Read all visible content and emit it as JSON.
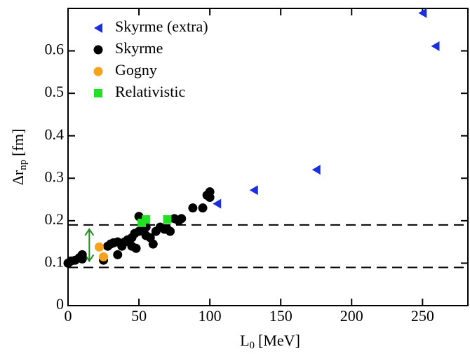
{
  "chart_data": {
    "type": "scatter",
    "xlabel": {
      "main": "L",
      "sub": "0",
      "unit": "[MeV]"
    },
    "ylabel": {
      "main": "Δr",
      "sub": "np",
      "unit": "[fm]"
    },
    "xlim": [
      0,
      282
    ],
    "ylim": [
      0,
      0.7
    ],
    "xticks": [
      0,
      50,
      100,
      150,
      200,
      250
    ],
    "yticks": [
      0,
      0.1,
      0.2,
      0.3,
      0.4,
      0.5,
      0.6
    ],
    "hlines": [
      0.09,
      0.19
    ],
    "arrow": {
      "x": 15,
      "y": [
        0.105,
        0.18
      ],
      "color": "#1f8f1f"
    },
    "legend": "upper left",
    "series": [
      {
        "name": "Skyrme (extra)",
        "marker": "triangle-left",
        "color": "#1c2fdc",
        "x": [
          105,
          131,
          175,
          250,
          259
        ],
        "values": [
          0.24,
          0.272,
          0.32,
          0.689,
          0.611
        ]
      },
      {
        "name": "Skyrme",
        "marker": "circle",
        "color": "#000000",
        "x": [
          0,
          2,
          5,
          8,
          10,
          10,
          25,
          28,
          30,
          32,
          35,
          35,
          38,
          40,
          42,
          45,
          45,
          47,
          48,
          50,
          50,
          52,
          55,
          55,
          58,
          60,
          62,
          65,
          68,
          70,
          72,
          75,
          78,
          80,
          88,
          95,
          98,
          100,
          100
        ],
        "values": [
          0.1,
          0.105,
          0.107,
          0.113,
          0.12,
          0.11,
          0.107,
          0.14,
          0.145,
          0.148,
          0.12,
          0.15,
          0.14,
          0.15,
          0.155,
          0.16,
          0.14,
          0.17,
          0.135,
          0.175,
          0.21,
          0.18,
          0.165,
          0.185,
          0.16,
          0.145,
          0.175,
          0.185,
          0.18,
          0.18,
          0.175,
          0.205,
          0.2,
          0.205,
          0.23,
          0.23,
          0.26,
          0.268,
          0.255
        ]
      },
      {
        "name": "Gogny",
        "marker": "circle",
        "color": "#f7a21c",
        "x": [
          22,
          25
        ],
        "values": [
          0.138,
          0.115
        ]
      },
      {
        "name": "Relativistic",
        "marker": "square",
        "color": "#22e022",
        "x": [
          52,
          55,
          70
        ],
        "values": [
          0.195,
          0.203,
          0.203
        ]
      }
    ]
  }
}
